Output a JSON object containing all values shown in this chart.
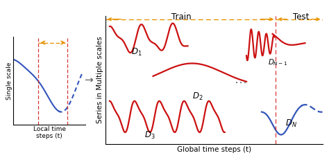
{
  "left_panel": {
    "xlabel": "Local time\nsteps (t)",
    "ylabel": "Single scale",
    "orange_color": "#E8960A",
    "red_color": "#D42020",
    "blue_color": "#3355BB",
    "arrow_color": "#666666"
  },
  "right_panel": {
    "xlabel": "Global time steps (t)",
    "ylabel": "Series in Multiple scales",
    "train_label": "Train",
    "test_label": "Test",
    "red_color": "#CC1010",
    "blue_color": "#3355BB",
    "orange_color": "#E8960A",
    "vline_color": "#D42020",
    "dots_color": "#777777"
  }
}
